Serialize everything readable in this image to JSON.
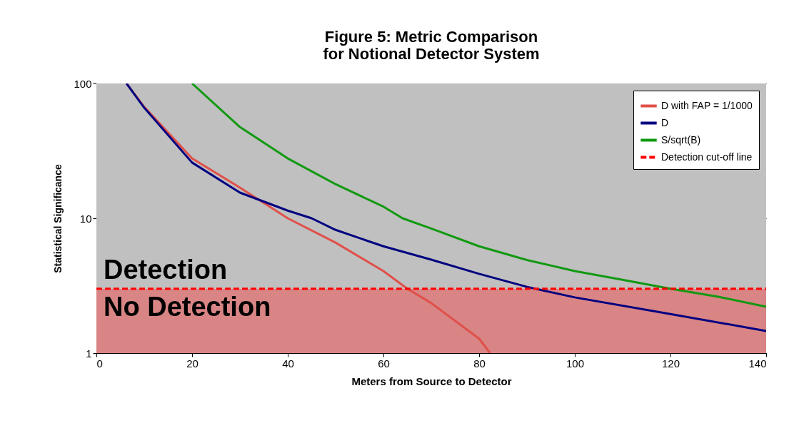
{
  "chart_data": {
    "type": "line",
    "title": "Figure 5: Metric Comparison for Notional Detector System",
    "xlabel": "Meters from Source to Detector",
    "ylabel": "Statistical  Significance",
    "series": [
      {
        "name": "D with FAP = 1/1000",
        "color": "#e0504a",
        "x": [
          6.3,
          10,
          20,
          30,
          40,
          50,
          60,
          65,
          70,
          80,
          82.3
        ],
        "values": [
          100,
          67,
          27.8,
          16.9,
          10,
          6.6,
          4.06,
          3,
          2.35,
          1.28,
          1
        ]
      },
      {
        "name": "D",
        "color": "#000080",
        "x": [
          6.3,
          10,
          20,
          30,
          40,
          45,
          50,
          60,
          70,
          80,
          90,
          100,
          120,
          140
        ],
        "values": [
          100,
          66,
          25.9,
          15.5,
          11.4,
          10,
          8.2,
          6.2,
          4.93,
          3.87,
          3.1,
          2.59,
          1.95,
          1.46
        ]
      },
      {
        "name": "S/sqrt(B)",
        "color": "#119911",
        "x": [
          20,
          30,
          40,
          50,
          60,
          64,
          70,
          80,
          90,
          100,
          110,
          120,
          130,
          140
        ],
        "values": [
          100,
          47.5,
          27.8,
          17.9,
          12.2,
          10,
          8.4,
          6.2,
          4.9,
          4.06,
          3.5,
          3,
          2.62,
          2.21
        ]
      }
    ],
    "ref_lines": [
      {
        "axis": "y",
        "value": 3,
        "label": "Detection cut-off line",
        "color": "#ff0000",
        "line_style": "dashed"
      }
    ],
    "bands": [
      {
        "axis": "y",
        "from": 3,
        "to": 100,
        "label": "Detection",
        "color": "#c0c0c0"
      },
      {
        "axis": "y",
        "from": 1,
        "to": 3,
        "label": "No Detection",
        "color": "#d98585"
      }
    ],
    "xlim": [
      0,
      140
    ],
    "xticks": [
      0,
      20,
      40,
      60,
      80,
      100,
      120,
      140
    ],
    "ylim": [
      1,
      100
    ],
    "yticks": [
      1,
      10,
      100
    ],
    "log": "y",
    "grid": "y",
    "legend": "top right"
  }
}
